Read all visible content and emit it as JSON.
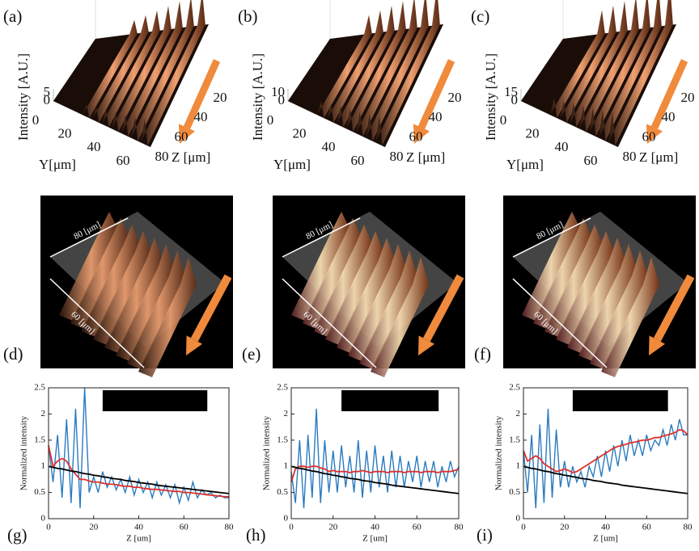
{
  "surface_panels": [
    {
      "label": "(a)",
      "z_axis_label": "Intensity [A.U.]",
      "z_ticks": [
        0,
        5
      ],
      "y_axis_label": "Y[μm]",
      "y_ticks": [
        0,
        20,
        40,
        60
      ],
      "x_axis_label": "Z [μm]",
      "x_ticks": [
        20,
        40,
        60,
        80
      ]
    },
    {
      "label": "(b)",
      "z_axis_label": "Intensity [A.U.]",
      "z_ticks": [
        0,
        10
      ],
      "y_axis_label": "Y[μm]",
      "y_ticks": [
        0,
        20,
        40,
        60
      ],
      "x_axis_label": "Z [μm]",
      "x_ticks": [
        20,
        40,
        60,
        80
      ]
    },
    {
      "label": "(c)",
      "z_axis_label": "Intensity [A.U.]",
      "z_ticks": [
        0,
        15
      ],
      "y_axis_label": "Y[μm]",
      "y_ticks": [
        0,
        20,
        40,
        60
      ],
      "x_axis_label": "Z [μm]",
      "x_ticks": [
        20,
        40,
        60,
        80
      ]
    }
  ],
  "image_panels": [
    {
      "label": "(d)",
      "length_label": "80 [μm]",
      "width_label": "60 [μm]"
    },
    {
      "label": "(e)",
      "length_label": "80 [μm]",
      "width_label": "60 [μm]"
    },
    {
      "label": "(f)",
      "length_label": "80 [μm]",
      "width_label": "60 [μm]"
    }
  ],
  "chart_data": [
    {
      "type": "line",
      "panel_label": "(g)",
      "ylabel": "Normalized intensity",
      "xlabel": "Z [um]",
      "xlim": [
        0,
        80
      ],
      "ylim": [
        0,
        2.5
      ],
      "xticks": [
        0,
        20,
        40,
        60,
        80
      ],
      "yticks": [
        0,
        0.5,
        1,
        1.5,
        2,
        2.5
      ],
      "x": [
        0,
        2,
        4,
        6,
        8,
        10,
        12,
        14,
        16,
        18,
        20,
        22,
        24,
        26,
        28,
        30,
        32,
        34,
        36,
        38,
        40,
        42,
        44,
        46,
        48,
        50,
        52,
        54,
        56,
        58,
        60,
        62,
        64,
        66,
        68,
        70,
        72,
        74,
        76,
        78,
        80
      ],
      "series": [
        {
          "color": "#2b7bbf",
          "values": [
            1.4,
            0.7,
            1.6,
            0.4,
            1.9,
            0.3,
            2.1,
            0.2,
            2.5,
            0.5,
            0.8,
            0.5,
            0.9,
            0.6,
            0.8,
            0.55,
            0.75,
            0.5,
            0.8,
            0.45,
            0.75,
            0.5,
            0.7,
            0.4,
            0.7,
            0.45,
            0.65,
            0.4,
            0.65,
            0.3,
            0.6,
            0.35,
            0.7,
            0.4,
            0.55,
            0.45,
            0.5,
            0.4,
            0.45,
            0.4,
            0.4
          ]
        },
        {
          "color": "#e0302a",
          "values": [
            1.4,
            1.0,
            1.1,
            1.15,
            1.1,
            0.95,
            0.85,
            0.75,
            0.75,
            0.72,
            0.7,
            0.7,
            0.68,
            0.66,
            0.66,
            0.65,
            0.63,
            0.62,
            0.62,
            0.6,
            0.6,
            0.58,
            0.57,
            0.56,
            0.56,
            0.55,
            0.54,
            0.53,
            0.52,
            0.52,
            0.5,
            0.5,
            0.49,
            0.48,
            0.47,
            0.46,
            0.45,
            0.44,
            0.43,
            0.42,
            0.42
          ]
        },
        {
          "color": "#000000",
          "values": [
            1.0,
            0.98,
            0.96,
            0.95,
            0.93,
            0.91,
            0.9,
            0.88,
            0.86,
            0.85,
            0.83,
            0.82,
            0.8,
            0.79,
            0.77,
            0.76,
            0.75,
            0.73,
            0.72,
            0.71,
            0.69,
            0.68,
            0.67,
            0.66,
            0.64,
            0.63,
            0.62,
            0.61,
            0.6,
            0.59,
            0.58,
            0.57,
            0.56,
            0.55,
            0.54,
            0.53,
            0.52,
            0.51,
            0.5,
            0.49,
            0.48
          ]
        }
      ]
    },
    {
      "type": "line",
      "panel_label": "(h)",
      "ylabel": "Normalized intensity",
      "xlabel": "Z [um]",
      "xlim": [
        0,
        80
      ],
      "ylim": [
        0,
        2.5
      ],
      "xticks": [
        0,
        20,
        40,
        60,
        80
      ],
      "yticks": [
        0,
        0.5,
        1,
        1.5,
        2,
        2.5
      ],
      "x": [
        0,
        2,
        4,
        6,
        8,
        10,
        12,
        14,
        16,
        18,
        20,
        22,
        24,
        26,
        28,
        30,
        32,
        34,
        36,
        38,
        40,
        42,
        44,
        46,
        48,
        50,
        52,
        54,
        56,
        58,
        60,
        62,
        64,
        66,
        68,
        70,
        72,
        74,
        76,
        78,
        80
      ],
      "series": [
        {
          "color": "#2b7bbf",
          "values": [
            0.9,
            0.3,
            1.5,
            0.2,
            1.6,
            0.4,
            2.1,
            0.3,
            1.5,
            0.5,
            1.3,
            0.5,
            1.4,
            0.6,
            1.2,
            0.5,
            1.5,
            0.4,
            1.3,
            0.5,
            1.4,
            0.6,
            1.2,
            0.5,
            1.3,
            0.6,
            1.2,
            0.6,
            1.1,
            0.7,
            1.2,
            0.6,
            1.1,
            0.7,
            1.1,
            0.6,
            1.0,
            0.7,
            1.1,
            0.8,
            1.0
          ]
        },
        {
          "color": "#e0302a",
          "values": [
            0.7,
            0.95,
            1.0,
            1.0,
            0.98,
            1.0,
            1.0,
            0.97,
            0.95,
            0.9,
            0.92,
            0.9,
            0.9,
            0.9,
            0.88,
            0.9,
            0.9,
            0.92,
            0.9,
            0.88,
            0.9,
            0.9,
            0.9,
            0.88,
            0.9,
            0.9,
            0.9,
            0.88,
            0.9,
            0.9,
            0.9,
            0.88,
            0.9,
            0.9,
            0.9,
            0.88,
            0.9,
            0.9,
            0.9,
            0.92,
            0.95
          ]
        },
        {
          "color": "#000000",
          "values": [
            1.0,
            0.98,
            0.96,
            0.95,
            0.93,
            0.91,
            0.9,
            0.88,
            0.86,
            0.85,
            0.83,
            0.82,
            0.8,
            0.79,
            0.77,
            0.76,
            0.75,
            0.73,
            0.72,
            0.71,
            0.69,
            0.68,
            0.67,
            0.66,
            0.64,
            0.63,
            0.62,
            0.61,
            0.6,
            0.59,
            0.58,
            0.57,
            0.56,
            0.55,
            0.54,
            0.53,
            0.52,
            0.51,
            0.5,
            0.49,
            0.48
          ]
        }
      ]
    },
    {
      "type": "line",
      "panel_label": "(i)",
      "ylabel": "Normalized intensity",
      "xlabel": "Z [um]",
      "xlim": [
        0,
        80
      ],
      "ylim": [
        0,
        2.5
      ],
      "xticks": [
        0,
        20,
        40,
        60,
        80
      ],
      "yticks": [
        0,
        0.5,
        1,
        1.5,
        2,
        2.5
      ],
      "x": [
        0,
        2,
        4,
        6,
        8,
        10,
        12,
        14,
        16,
        18,
        20,
        22,
        24,
        26,
        28,
        30,
        32,
        34,
        36,
        38,
        40,
        42,
        44,
        46,
        48,
        50,
        52,
        54,
        56,
        58,
        60,
        62,
        64,
        66,
        68,
        70,
        72,
        74,
        76,
        78,
        80
      ],
      "series": [
        {
          "color": "#2b7bbf",
          "values": [
            1.3,
            0.5,
            1.6,
            0.2,
            1.8,
            0.3,
            2.1,
            0.4,
            1.7,
            0.6,
            1.1,
            0.6,
            1.0,
            0.7,
            0.9,
            0.6,
            1.0,
            0.8,
            1.2,
            0.8,
            1.3,
            0.9,
            1.4,
            1.0,
            1.5,
            1.1,
            1.6,
            1.2,
            1.5,
            1.2,
            1.6,
            1.3,
            1.5,
            1.4,
            1.7,
            1.4,
            1.8,
            1.5,
            1.9,
            1.6,
            1.6
          ]
        },
        {
          "color": "#e0302a",
          "values": [
            1.3,
            1.1,
            1.15,
            1.2,
            1.15,
            1.05,
            1.0,
            0.95,
            0.9,
            0.92,
            0.95,
            0.92,
            0.88,
            0.9,
            0.95,
            1.0,
            1.05,
            1.1,
            1.15,
            1.2,
            1.25,
            1.3,
            1.35,
            1.38,
            1.4,
            1.42,
            1.45,
            1.46,
            1.48,
            1.5,
            1.5,
            1.52,
            1.55,
            1.55,
            1.58,
            1.6,
            1.62,
            1.65,
            1.7,
            1.68,
            1.6
          ]
        },
        {
          "color": "#000000",
          "values": [
            1.0,
            0.98,
            0.96,
            0.95,
            0.93,
            0.91,
            0.9,
            0.88,
            0.86,
            0.85,
            0.83,
            0.82,
            0.8,
            0.79,
            0.77,
            0.76,
            0.75,
            0.73,
            0.72,
            0.71,
            0.69,
            0.68,
            0.67,
            0.66,
            0.64,
            0.63,
            0.62,
            0.61,
            0.6,
            0.59,
            0.58,
            0.57,
            0.56,
            0.55,
            0.54,
            0.53,
            0.52,
            0.51,
            0.5,
            0.49,
            0.48
          ]
        }
      ]
    }
  ]
}
